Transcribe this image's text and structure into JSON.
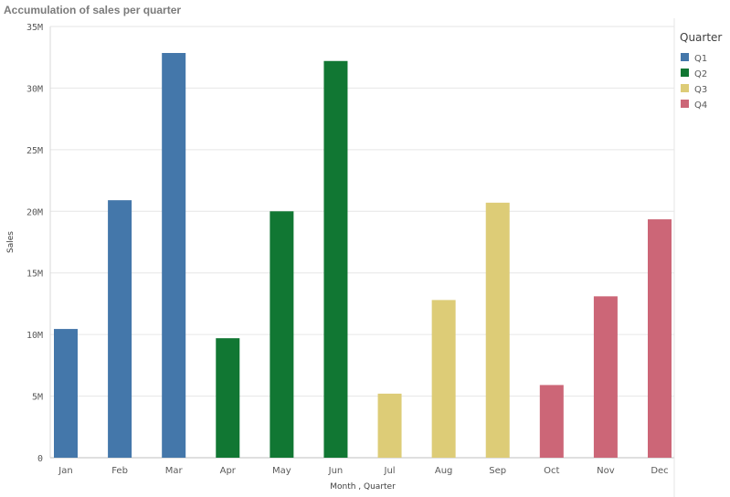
{
  "chart_data": {
    "type": "bar",
    "title": "Accumulation of sales per quarter",
    "xlabel": "Month , Quarter",
    "ylabel": "Sales",
    "ylim": [
      0,
      35000000
    ],
    "yticks": [
      {
        "v": 0,
        "label": "0"
      },
      {
        "v": 5000000,
        "label": "5M"
      },
      {
        "v": 10000000,
        "label": "10M"
      },
      {
        "v": 15000000,
        "label": "15M"
      },
      {
        "v": 20000000,
        "label": "20M"
      },
      {
        "v": 25000000,
        "label": "25M"
      },
      {
        "v": 30000000,
        "label": "30M"
      },
      {
        "v": 35000000,
        "label": "35M"
      }
    ],
    "grid": true,
    "categories": [
      "Jan",
      "Feb",
      "Mar",
      "Apr",
      "May",
      "Jun",
      "Jul",
      "Aug",
      "Sep",
      "Oct",
      "Nov",
      "Dec"
    ],
    "values": [
      10450000,
      20900000,
      32850000,
      9700000,
      20000000,
      32200000,
      5200000,
      12800000,
      20700000,
      5900000,
      13100000,
      19350000
    ],
    "quarter": [
      "Q1",
      "Q1",
      "Q1",
      "Q2",
      "Q2",
      "Q2",
      "Q3",
      "Q3",
      "Q3",
      "Q4",
      "Q4",
      "Q4"
    ],
    "legend": {
      "title": "Quarter",
      "position": "right",
      "items": [
        {
          "name": "Q1",
          "color": "#4477aa"
        },
        {
          "name": "Q2",
          "color": "#117733"
        },
        {
          "name": "Q3",
          "color": "#ddcc77"
        },
        {
          "name": "Q4",
          "color": "#cc6677"
        }
      ]
    }
  }
}
